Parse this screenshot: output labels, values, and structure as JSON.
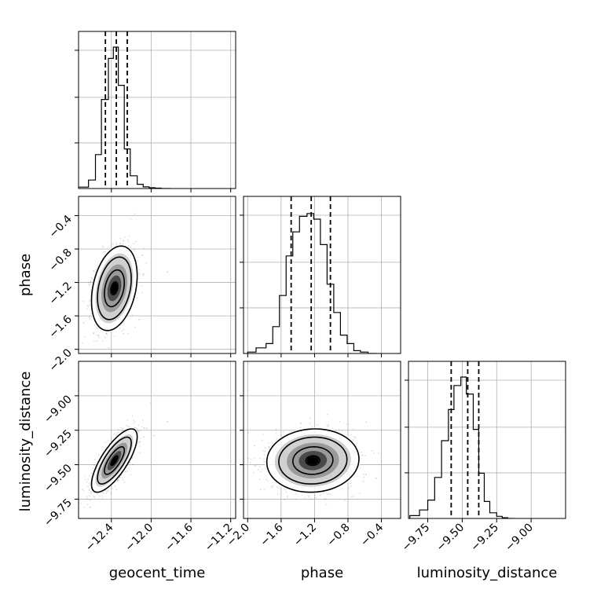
{
  "chart_data": {
    "type": "corner",
    "parameters": [
      "geocent_time",
      "phase",
      "luminosity_distance"
    ],
    "ranges": {
      "geocent_time": [
        -12.73,
        -11.15
      ],
      "phase": [
        -2.05,
        -0.17
      ],
      "luminosity_distance": [
        -9.89,
        -8.75
      ]
    },
    "ticks": {
      "geocent_time": [
        -12.4,
        -12.0,
        -11.6,
        -11.2
      ],
      "phase_y": [
        -0.4,
        -0.8,
        -1.2,
        -1.6,
        -2.0
      ],
      "phase_x": [
        -2.0,
        -1.6,
        -1.2,
        -0.8,
        -0.4
      ],
      "luminosity_distance_y": [
        -9.0,
        -9.25,
        -9.5,
        -9.75
      ],
      "luminosity_distance_x": [
        -9.75,
        -9.5,
        -9.25,
        -9.0
      ]
    },
    "tick_labels": {
      "geocent_time": [
        "−12.4",
        "−12.0",
        "−11.6",
        "−11.2"
      ],
      "phase_y": [
        "−0.4",
        "−0.8",
        "−1.2",
        "−1.6",
        "−2.0"
      ],
      "phase_x": [
        "−2.0",
        "−1.6",
        "−1.2",
        "−0.8",
        "−0.4"
      ],
      "luminosity_distance_y": [
        "−9.00",
        "−9.25",
        "−9.50",
        "−9.75"
      ],
      "luminosity_distance_x": [
        "−9.75",
        "−9.50",
        "−9.25",
        "−9.00"
      ]
    },
    "quantiles": {
      "geocent_time": [
        -12.46,
        -12.35,
        -12.24
      ],
      "phase": [
        -1.48,
        -1.24,
        -1.01
      ],
      "luminosity_distance": [
        -9.58,
        -9.46,
        -9.38
      ]
    },
    "histograms": {
      "geocent_time": {
        "edges": [
          -12.73,
          -12.63,
          -12.56,
          -12.5,
          -12.43,
          -12.38,
          -12.33,
          -12.27,
          -12.21,
          -12.14,
          -12.08,
          -12.02,
          -11.96,
          -11.9,
          -11.8
        ],
        "counts": [
          0.01,
          0.06,
          0.24,
          0.63,
          0.92,
          1.0,
          0.73,
          0.28,
          0.09,
          0.03,
          0.012,
          0.006,
          0.003,
          0
        ]
      },
      "phase": {
        "edges": [
          -2.0,
          -1.9,
          -1.78,
          -1.7,
          -1.62,
          -1.54,
          -1.46,
          -1.38,
          -1.29,
          -1.21,
          -1.13,
          -1.05,
          -0.97,
          -0.89,
          -0.81,
          -0.73,
          -0.65,
          -0.56,
          -0.46
        ],
        "counts": [
          0.01,
          0.04,
          0.07,
          0.19,
          0.41,
          0.69,
          0.86,
          0.97,
          0.99,
          0.95,
          0.77,
          0.49,
          0.29,
          0.13,
          0.07,
          0.02,
          0.01,
          0
        ]
      },
      "luminosity_distance": {
        "edges": [
          -9.88,
          -9.81,
          -9.75,
          -9.7,
          -9.65,
          -9.6,
          -9.56,
          -9.51,
          -9.47,
          -9.42,
          -9.38,
          -9.34,
          -9.3,
          -9.25,
          -9.21,
          -9.17,
          -9.12
        ],
        "counts": [
          0.02,
          0.06,
          0.13,
          0.29,
          0.55,
          0.77,
          0.94,
          1.0,
          0.88,
          0.63,
          0.32,
          0.12,
          0.04,
          0.015,
          0.005,
          0
        ]
      }
    },
    "joint": [
      {
        "x": "geocent_time",
        "y": "phase",
        "mean": [
          -12.37,
          -1.27
        ],
        "sd": [
          0.1,
          0.22
        ],
        "corr": 0.3
      },
      {
        "x": "geocent_time",
        "y": "luminosity_distance",
        "mean": [
          -12.37,
          -9.47
        ],
        "sd": [
          0.1,
          0.1
        ],
        "corr": 0.75
      },
      {
        "x": "phase",
        "y": "luminosity_distance",
        "mean": [
          -1.22,
          -9.47
        ],
        "sd": [
          0.24,
          0.1
        ],
        "corr": 0.05
      }
    ],
    "grid": true,
    "legend": "none"
  }
}
